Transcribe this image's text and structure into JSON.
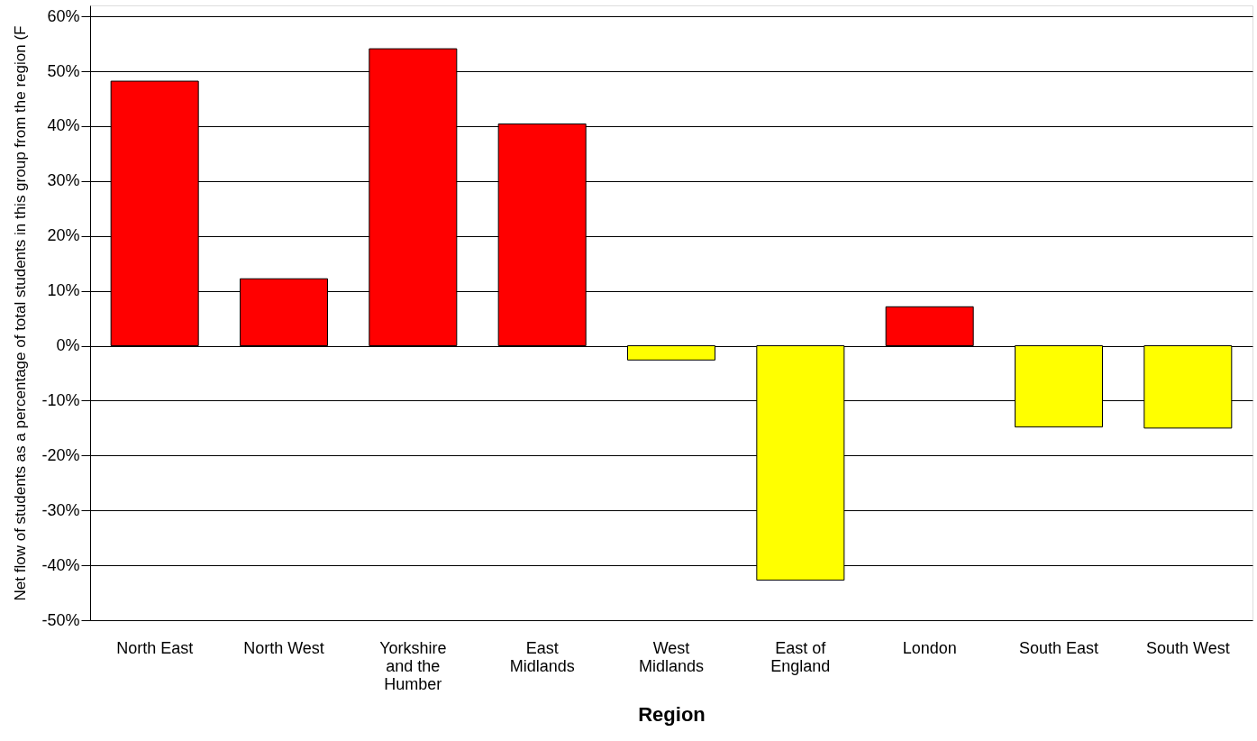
{
  "chart_data": {
    "type": "bar",
    "xlabel": "Region",
    "ylabel": "Net flow of students as a percentage of total students in this group from the region (F",
    "categories": [
      "North East",
      "North West",
      "Yorkshire and the Humber",
      "East Midlands",
      "West Midlands",
      "East of England",
      "London",
      "South East",
      "South West"
    ],
    "values": [
      48.2,
      12.2,
      54.1,
      40.4,
      -2.6,
      -42.7,
      7.1,
      -14.8,
      -15.0
    ],
    "colors": [
      "#ff0000",
      "#ff0000",
      "#ff0000",
      "#ff0000",
      "#ffff00",
      "#ffff00",
      "#ff0000",
      "#ffff00",
      "#ffff00"
    ],
    "ylim": [
      -50,
      62
    ],
    "yticks": [
      {
        "value": -50,
        "label": "-50%"
      },
      {
        "value": -40,
        "label": "-40%"
      },
      {
        "value": -30,
        "label": "-30%"
      },
      {
        "value": -20,
        "label": "-20%"
      },
      {
        "value": -10,
        "label": "-10%"
      },
      {
        "value": 0,
        "label": "0%"
      },
      {
        "value": 10,
        "label": "10%"
      },
      {
        "value": 20,
        "label": "20%"
      },
      {
        "value": 30,
        "label": "30%"
      },
      {
        "value": 40,
        "label": "40%"
      },
      {
        "value": 50,
        "label": "50%"
      },
      {
        "value": 60,
        "label": "60%"
      }
    ],
    "grid": "y"
  }
}
